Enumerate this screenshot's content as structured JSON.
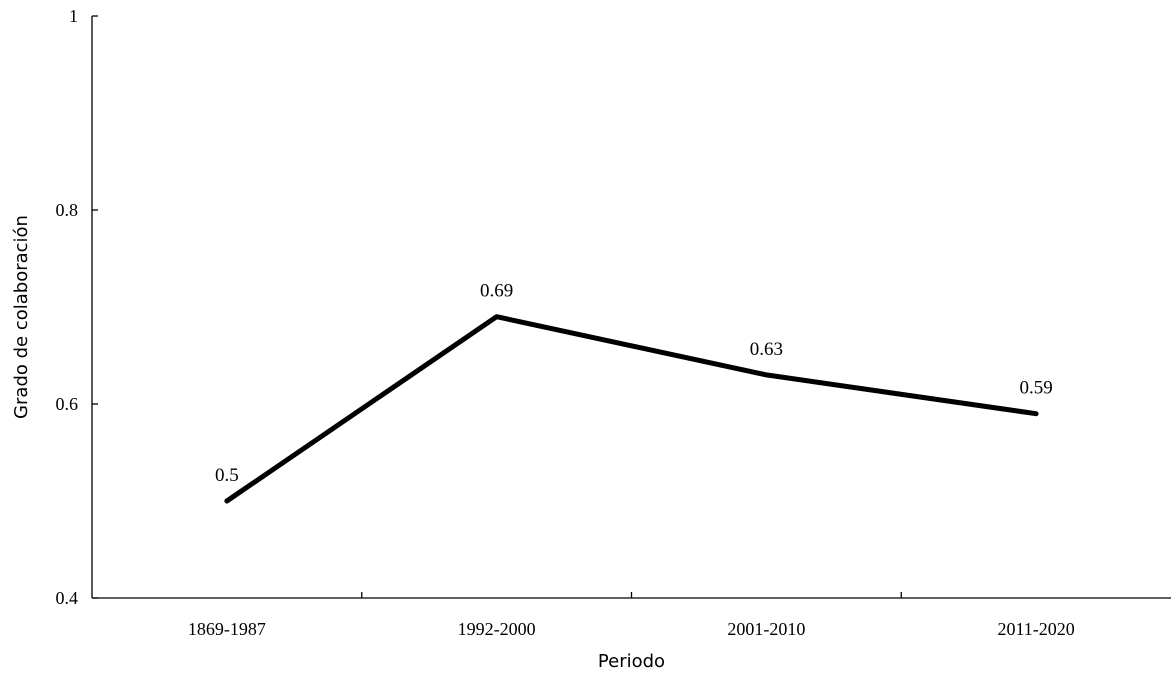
{
  "chart_data": {
    "type": "line",
    "categories": [
      "1869-1987",
      "1992-2000",
      "2001-2010",
      "2011-2020"
    ],
    "series": [
      {
        "values": [
          0.5,
          0.69,
          0.63,
          0.59
        ],
        "data_labels": [
          "0.5",
          "0.69",
          "0.63",
          "0.59"
        ],
        "color": "#000000"
      }
    ],
    "title": "",
    "xlabel": "Periodo",
    "ylabel": "Grado de colaboración",
    "ylim": [
      0.4,
      1
    ],
    "yticks": [
      0.4,
      0.6,
      0.8,
      1
    ],
    "ytick_labels": [
      "0.4",
      "0.6",
      "0.8",
      "1"
    ],
    "grid": false,
    "legend": "none"
  }
}
